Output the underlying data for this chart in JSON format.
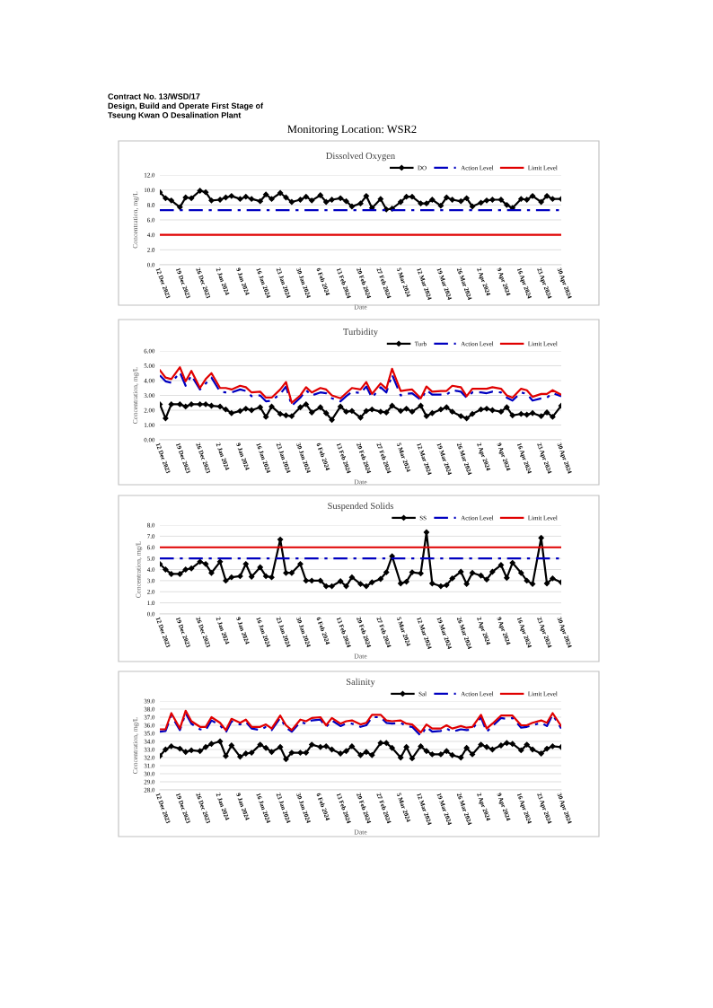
{
  "chart_data": [
    {
      "type": "line",
      "title": "Dissolved Oxygen",
      "xlabel": "Date",
      "ylabel": "Concentration, mg/L",
      "annotations": [
        "Contract No. 13/WSD/17\nDesign, Build and Operate First Stage of\nTseung Kwan O Desalination Plant",
        "Monitoring Location: WSR2"
      ],
      "x": [
        "2023-12-12",
        "2023-12-14",
        "2023-12-16",
        "2023-12-19",
        "2023-12-21",
        "2023-12-23",
        "2023-12-26",
        "2023-12-28",
        "2023-12-30",
        "2024-01-02",
        "2024-01-04",
        "2024-01-06",
        "2024-01-09",
        "2024-01-11",
        "2024-01-13",
        "2024-01-16",
        "2024-01-18",
        "2024-01-20",
        "2024-01-23",
        "2024-01-25",
        "2024-01-27",
        "2024-01-30",
        "2024-02-01",
        "2024-02-03",
        "2024-02-06",
        "2024-02-08",
        "2024-02-10",
        "2024-02-13",
        "2024-02-15",
        "2024-02-17",
        "2024-02-20",
        "2024-02-22",
        "2024-02-24",
        "2024-02-27",
        "2024-02-29",
        "2024-03-02",
        "2024-03-05",
        "2024-03-07",
        "2024-03-09",
        "2024-03-12",
        "2024-03-14",
        "2024-03-16",
        "2024-03-19",
        "2024-03-21",
        "2024-03-23",
        "2024-03-26",
        "2024-03-28",
        "2024-03-30",
        "2024-04-02",
        "2024-04-04",
        "2024-04-06",
        "2024-04-09",
        "2024-04-11",
        "2024-04-13",
        "2024-04-16",
        "2024-04-18",
        "2024-04-20",
        "2024-04-23",
        "2024-04-25",
        "2024-04-27",
        "2024-04-30"
      ],
      "series": [
        {
          "name": "DO",
          "color": "#000000",
          "marker": "diamond",
          "line_style": "solid",
          "values": [
            9.7,
            8.9,
            8.6,
            7.7,
            9.0,
            8.9,
            9.9,
            9.7,
            8.6,
            8.7,
            9.0,
            9.2,
            8.8,
            9.1,
            8.8,
            8.5,
            9.4,
            8.8,
            9.6,
            9.0,
            8.4,
            8.7,
            9.1,
            8.6,
            9.3,
            8.4,
            8.7,
            8.9,
            8.5,
            7.8,
            8.2,
            9.2,
            7.6,
            8.8,
            7.4,
            7.5,
            8.4,
            9.1,
            9.1,
            8.2,
            8.2,
            8.7,
            7.9,
            9.0,
            8.7,
            8.5,
            8.9,
            7.8,
            8.3,
            8.6,
            8.7,
            8.7,
            8.0,
            7.6,
            8.8,
            8.7,
            9.2,
            8.4,
            9.2,
            8.8,
            8.8
          ]
        },
        {
          "name": "Action Level",
          "color": "#0000c0",
          "marker": "none",
          "line_style": "dashed",
          "values": [
            7.3,
            7.3,
            7.3,
            7.3,
            7.3,
            7.3,
            7.3,
            7.3,
            7.3,
            7.3,
            7.3,
            7.3,
            7.3,
            7.3,
            7.3,
            7.3,
            7.3,
            7.3,
            7.3,
            7.3,
            7.3,
            7.3,
            7.3,
            7.3,
            7.3,
            7.3,
            7.3,
            7.3,
            7.3,
            7.3,
            7.3,
            7.3,
            7.3,
            7.3,
            7.3,
            7.3,
            7.3,
            7.3,
            7.3,
            7.3,
            7.3,
            7.3,
            7.3,
            7.3,
            7.3,
            7.3,
            7.3,
            7.3,
            7.3,
            7.3,
            7.3,
            7.3,
            7.3,
            7.3,
            7.3,
            7.3,
            7.3,
            7.3,
            7.3,
            7.3,
            7.3
          ]
        },
        {
          "name": "Limit Level",
          "color": "#e00000",
          "marker": "none",
          "line_style": "solid",
          "values": [
            4.0,
            4.0,
            4.0,
            4.0,
            4.0,
            4.0,
            4.0,
            4.0,
            4.0,
            4.0,
            4.0,
            4.0,
            4.0,
            4.0,
            4.0,
            4.0,
            4.0,
            4.0,
            4.0,
            4.0,
            4.0,
            4.0,
            4.0,
            4.0,
            4.0,
            4.0,
            4.0,
            4.0,
            4.0,
            4.0,
            4.0,
            4.0,
            4.0,
            4.0,
            4.0,
            4.0,
            4.0,
            4.0,
            4.0,
            4.0,
            4.0,
            4.0,
            4.0,
            4.0,
            4.0,
            4.0,
            4.0,
            4.0,
            4.0,
            4.0,
            4.0,
            4.0,
            4.0,
            4.0,
            4.0,
            4.0,
            4.0,
            4.0,
            4.0,
            4.0,
            4.0
          ]
        }
      ],
      "xlim": [
        "2023-12-12",
        "2024-04-30"
      ],
      "xticks": [
        {
          "value": "2023-12-12",
          "label": "12 Dec 2023"
        },
        {
          "value": "2023-12-19",
          "label": "19 Dec 2023"
        },
        {
          "value": "2023-12-26",
          "label": "26 Dec 2023"
        },
        {
          "value": "2024-01-02",
          "label": "2 Jan 2024"
        },
        {
          "value": "2024-01-09",
          "label": "9 Jan 2024"
        },
        {
          "value": "2024-01-16",
          "label": "16 Jan 2024"
        },
        {
          "value": "2024-01-23",
          "label": "23 Jan 2024"
        },
        {
          "value": "2024-01-30",
          "label": "30 Jan 2024"
        },
        {
          "value": "2024-02-06",
          "label": "6 Feb 2024"
        },
        {
          "value": "2024-02-13",
          "label": "13 Feb 2024"
        },
        {
          "value": "2024-02-20",
          "label": "20 Feb 2024"
        },
        {
          "value": "2024-02-27",
          "label": "27 Feb 2024"
        },
        {
          "value": "2024-03-05",
          "label": "5 Mar 2024"
        },
        {
          "value": "2024-03-12",
          "label": "12 Mar 2024"
        },
        {
          "value": "2024-03-19",
          "label": "19 Mar 2024"
        },
        {
          "value": "2024-03-26",
          "label": "26 Mar 2024"
        },
        {
          "value": "2024-04-02",
          "label": "2 Apr 2024"
        },
        {
          "value": "2024-04-09",
          "label": "9 Apr 2024"
        },
        {
          "value": "2024-04-16",
          "label": "16 Apr 2024"
        },
        {
          "value": "2024-04-23",
          "label": "23 Apr 2024"
        },
        {
          "value": "2024-04-30",
          "label": "30 Apr 2024"
        }
      ],
      "ylim": [
        0,
        12
      ],
      "yticks": [
        {
          "value": 0,
          "label": "0.0"
        },
        {
          "value": 2,
          "label": "2.0"
        },
        {
          "value": 4,
          "label": "4.0"
        },
        {
          "value": 6,
          "label": "6.0"
        },
        {
          "value": 8,
          "label": "8.0"
        },
        {
          "value": 10,
          "label": "10.0"
        },
        {
          "value": 12,
          "label": "12.0"
        }
      ],
      "grid": "y",
      "legend": "top right"
    },
    {
      "type": "line",
      "title": "Turbidity",
      "xlabel": "Date",
      "ylabel": "Concentration, mg/L",
      "x": [
        "2023-12-12",
        "2023-12-14",
        "2023-12-16",
        "2023-12-19",
        "2023-12-21",
        "2023-12-23",
        "2023-12-26",
        "2023-12-28",
        "2023-12-30",
        "2024-01-02",
        "2024-01-04",
        "2024-01-06",
        "2024-01-09",
        "2024-01-11",
        "2024-01-13",
        "2024-01-16",
        "2024-01-18",
        "2024-01-20",
        "2024-01-23",
        "2024-01-25",
        "2024-01-27",
        "2024-01-30",
        "2024-02-01",
        "2024-02-03",
        "2024-02-06",
        "2024-02-08",
        "2024-02-10",
        "2024-02-13",
        "2024-02-15",
        "2024-02-17",
        "2024-02-20",
        "2024-02-22",
        "2024-02-24",
        "2024-02-27",
        "2024-02-29",
        "2024-03-02",
        "2024-03-05",
        "2024-03-07",
        "2024-03-09",
        "2024-03-12",
        "2024-03-14",
        "2024-03-16",
        "2024-03-19",
        "2024-03-21",
        "2024-03-23",
        "2024-03-26",
        "2024-03-28",
        "2024-03-30",
        "2024-04-02",
        "2024-04-04",
        "2024-04-06",
        "2024-04-09",
        "2024-04-11",
        "2024-04-13",
        "2024-04-16",
        "2024-04-18",
        "2024-04-20",
        "2024-04-23",
        "2024-04-25",
        "2024-04-27",
        "2024-04-30"
      ],
      "series": [
        {
          "name": "Turb",
          "color": "#000000",
          "marker": "diamond",
          "line_style": "solid",
          "values": [
            2.4,
            1.45,
            2.4,
            2.4,
            2.25,
            2.4,
            2.4,
            2.4,
            2.3,
            2.25,
            2.05,
            1.8,
            1.95,
            2.1,
            2.0,
            2.2,
            1.55,
            2.25,
            1.75,
            1.65,
            1.6,
            2.2,
            2.4,
            1.85,
            2.2,
            1.8,
            1.35,
            2.25,
            1.9,
            1.95,
            1.5,
            1.95,
            2.05,
            1.9,
            1.85,
            2.3,
            1.95,
            2.1,
            1.9,
            2.3,
            1.6,
            1.8,
            2.05,
            2.2,
            1.9,
            1.6,
            1.45,
            1.75,
            2.05,
            2.1,
            2.0,
            1.9,
            2.2,
            1.65,
            1.75,
            1.7,
            1.8,
            1.6,
            1.85,
            1.55,
            2.3
          ]
        },
        {
          "name": "Action Level",
          "color": "#0000c0",
          "marker": "none",
          "line_style": "dashed",
          "values": [
            4.35,
            3.95,
            3.85,
            4.55,
            3.65,
            4.35,
            3.4,
            3.8,
            4.2,
            3.25,
            3.2,
            3.2,
            3.4,
            3.3,
            2.95,
            3.0,
            2.6,
            2.65,
            3.1,
            3.6,
            2.3,
            2.85,
            3.35,
            3.0,
            3.2,
            3.15,
            2.8,
            2.6,
            2.95,
            3.25,
            3.15,
            3.6,
            2.85,
            3.55,
            3.2,
            4.4,
            3.0,
            3.1,
            3.15,
            2.7,
            3.35,
            3.05,
            3.05,
            3.05,
            3.35,
            3.25,
            2.85,
            3.2,
            3.2,
            3.15,
            3.25,
            3.2,
            2.85,
            2.65,
            3.2,
            3.1,
            2.65,
            2.8,
            2.85,
            3.15,
            2.95
          ]
        },
        {
          "name": "Limit Level",
          "color": "#e00000",
          "marker": "none",
          "line_style": "solid",
          "values": [
            4.7,
            4.2,
            4.1,
            4.9,
            3.95,
            4.65,
            3.5,
            4.1,
            4.5,
            3.5,
            3.5,
            3.4,
            3.65,
            3.55,
            3.2,
            3.25,
            2.85,
            2.85,
            3.4,
            3.9,
            2.5,
            3.0,
            3.55,
            3.2,
            3.5,
            3.4,
            3.0,
            2.8,
            3.15,
            3.5,
            3.4,
            3.9,
            3.1,
            3.8,
            3.45,
            4.8,
            3.3,
            3.35,
            3.4,
            2.8,
            3.6,
            3.25,
            3.3,
            3.3,
            3.65,
            3.55,
            2.95,
            3.45,
            3.45,
            3.45,
            3.55,
            3.45,
            3.0,
            2.85,
            3.45,
            3.35,
            2.9,
            3.1,
            3.1,
            3.35,
            3.05
          ]
        }
      ],
      "xlim": [
        "2023-12-12",
        "2024-04-30"
      ],
      "xticks": [
        {
          "value": "2023-12-12",
          "label": "12 Dec 2023"
        },
        {
          "value": "2023-12-19",
          "label": "19 Dec 2023"
        },
        {
          "value": "2023-12-26",
          "label": "26 Dec 2023"
        },
        {
          "value": "2024-01-02",
          "label": "2 Jan 2024"
        },
        {
          "value": "2024-01-09",
          "label": "9 Jan 2024"
        },
        {
          "value": "2024-01-16",
          "label": "16 Jan 2024"
        },
        {
          "value": "2024-01-23",
          "label": "23 Jan 2024"
        },
        {
          "value": "2024-01-30",
          "label": "30 Jan 2024"
        },
        {
          "value": "2024-02-06",
          "label": "6 Feb 2024"
        },
        {
          "value": "2024-02-13",
          "label": "13 Feb 2024"
        },
        {
          "value": "2024-02-20",
          "label": "20 Feb 2024"
        },
        {
          "value": "2024-02-27",
          "label": "27 Feb 2024"
        },
        {
          "value": "2024-03-05",
          "label": "5 Mar 2024"
        },
        {
          "value": "2024-03-12",
          "label": "12 Mar 2024"
        },
        {
          "value": "2024-03-19",
          "label": "19 Mar 2024"
        },
        {
          "value": "2024-03-26",
          "label": "26 Mar 2024"
        },
        {
          "value": "2024-04-02",
          "label": "2 Apr 2024"
        },
        {
          "value": "2024-04-09",
          "label": "9 Apr 2024"
        },
        {
          "value": "2024-04-16",
          "label": "16 Apr 2024"
        },
        {
          "value": "2024-04-23",
          "label": "23 Apr 2024"
        },
        {
          "value": "2024-04-30",
          "label": "30 Apr 2024"
        }
      ],
      "ylim": [
        0,
        6
      ],
      "yticks": [
        {
          "value": 0,
          "label": "0.00"
        },
        {
          "value": 1,
          "label": "1.00"
        },
        {
          "value": 2,
          "label": "2.00"
        },
        {
          "value": 3,
          "label": "3.00"
        },
        {
          "value": 4,
          "label": "4.00"
        },
        {
          "value": 5,
          "label": "5.00"
        },
        {
          "value": 6,
          "label": "6.00"
        }
      ],
      "grid": "y",
      "legend": "top right"
    },
    {
      "type": "line",
      "title": "Suspended Solids",
      "xlabel": "Date",
      "ylabel": "Concentration, mg/L",
      "x": [
        "2023-12-12",
        "2023-12-14",
        "2023-12-16",
        "2023-12-19",
        "2023-12-21",
        "2023-12-23",
        "2023-12-26",
        "2023-12-28",
        "2023-12-30",
        "2024-01-02",
        "2024-01-04",
        "2024-01-06",
        "2024-01-09",
        "2024-01-11",
        "2024-01-13",
        "2024-01-16",
        "2024-01-18",
        "2024-01-20",
        "2024-01-23",
        "2024-01-25",
        "2024-01-27",
        "2024-01-30",
        "2024-02-01",
        "2024-02-03",
        "2024-02-06",
        "2024-02-08",
        "2024-02-10",
        "2024-02-13",
        "2024-02-15",
        "2024-02-17",
        "2024-02-20",
        "2024-02-22",
        "2024-02-24",
        "2024-02-27",
        "2024-02-29",
        "2024-03-02",
        "2024-03-05",
        "2024-03-07",
        "2024-03-09",
        "2024-03-12",
        "2024-03-14",
        "2024-03-16",
        "2024-03-19",
        "2024-03-21",
        "2024-03-23",
        "2024-03-26",
        "2024-03-28",
        "2024-03-30",
        "2024-04-02",
        "2024-04-04",
        "2024-04-06",
        "2024-04-09",
        "2024-04-11",
        "2024-04-13",
        "2024-04-16",
        "2024-04-18",
        "2024-04-20",
        "2024-04-23",
        "2024-04-25",
        "2024-04-27",
        "2024-04-30"
      ],
      "series": [
        {
          "name": "SS",
          "color": "#000000",
          "marker": "diamond",
          "line_style": "solid",
          "values": [
            4.5,
            4.0,
            3.6,
            3.6,
            4.0,
            4.1,
            4.7,
            4.5,
            3.7,
            4.7,
            3.0,
            3.3,
            3.4,
            4.5,
            3.35,
            4.2,
            3.4,
            3.3,
            6.7,
            3.7,
            3.7,
            4.5,
            3.0,
            3.0,
            3.0,
            2.5,
            2.5,
            2.95,
            2.5,
            3.3,
            2.7,
            2.5,
            2.85,
            3.15,
            3.75,
            5.2,
            2.75,
            2.9,
            3.75,
            3.65,
            7.35,
            2.75,
            2.5,
            2.6,
            3.2,
            3.8,
            2.7,
            3.7,
            3.45,
            3.1,
            3.8,
            4.4,
            3.25,
            4.6,
            3.7,
            3.0,
            2.7,
            6.85,
            2.75,
            3.2,
            2.85
          ]
        },
        {
          "name": "Action Level",
          "color": "#0000c0",
          "marker": "none",
          "line_style": "dashed",
          "values": [
            5.0,
            5.0,
            5.0,
            5.0,
            5.0,
            5.0,
            5.0,
            5.0,
            5.0,
            5.0,
            5.0,
            5.0,
            5.0,
            5.0,
            5.0,
            5.0,
            5.0,
            5.0,
            5.0,
            5.0,
            5.0,
            5.0,
            5.0,
            5.0,
            5.0,
            5.0,
            5.0,
            5.0,
            5.0,
            5.0,
            5.0,
            5.0,
            5.0,
            5.0,
            5.0,
            5.0,
            5.0,
            5.0,
            5.0,
            5.0,
            5.0,
            5.0,
            5.0,
            5.0,
            5.0,
            5.0,
            5.0,
            5.0,
            5.0,
            5.0,
            5.0,
            5.0,
            5.0,
            5.0,
            5.0,
            5.0,
            5.0,
            5.0,
            5.0,
            5.0,
            5.0
          ]
        },
        {
          "name": "Limit Level",
          "color": "#e00000",
          "marker": "none",
          "line_style": "solid",
          "values": [
            6.0,
            6.0,
            6.0,
            6.0,
            6.0,
            6.0,
            6.0,
            6.0,
            6.0,
            6.0,
            6.0,
            6.0,
            6.0,
            6.0,
            6.0,
            6.0,
            6.0,
            6.0,
            6.0,
            6.0,
            6.0,
            6.0,
            6.0,
            6.0,
            6.0,
            6.0,
            6.0,
            6.0,
            6.0,
            6.0,
            6.0,
            6.0,
            6.0,
            6.0,
            6.0,
            6.0,
            6.0,
            6.0,
            6.0,
            6.0,
            6.0,
            6.0,
            6.0,
            6.0,
            6.0,
            6.0,
            6.0,
            6.0,
            6.0,
            6.0,
            6.0,
            6.0,
            6.0,
            6.0,
            6.0,
            6.0,
            6.0,
            6.0,
            6.0,
            6.0,
            6.0
          ]
        }
      ],
      "xlim": [
        "2023-12-12",
        "2024-04-30"
      ],
      "xticks": [
        {
          "value": "2023-12-12",
          "label": "12 Dec 2023"
        },
        {
          "value": "2023-12-19",
          "label": "19 Dec 2023"
        },
        {
          "value": "2023-12-26",
          "label": "26 Dec 2023"
        },
        {
          "value": "2024-01-02",
          "label": "2 Jan 2024"
        },
        {
          "value": "2024-01-09",
          "label": "9 Jan 2024"
        },
        {
          "value": "2024-01-16",
          "label": "16 Jan 2024"
        },
        {
          "value": "2024-01-23",
          "label": "23 Jan 2024"
        },
        {
          "value": "2024-01-30",
          "label": "30 Jan 2024"
        },
        {
          "value": "2024-02-06",
          "label": "6 Feb 2024"
        },
        {
          "value": "2024-02-13",
          "label": "13 Feb 2024"
        },
        {
          "value": "2024-02-20",
          "label": "20 Feb 2024"
        },
        {
          "value": "2024-02-27",
          "label": "27 Feb 2024"
        },
        {
          "value": "2024-03-05",
          "label": "5 Mar 2024"
        },
        {
          "value": "2024-03-12",
          "label": "12 Mar 2024"
        },
        {
          "value": "2024-03-19",
          "label": "19 Mar 2024"
        },
        {
          "value": "2024-03-26",
          "label": "26 Mar 2024"
        },
        {
          "value": "2024-04-02",
          "label": "2 Apr 2024"
        },
        {
          "value": "2024-04-09",
          "label": "9 Apr 2024"
        },
        {
          "value": "2024-04-16",
          "label": "16 Apr 2024"
        },
        {
          "value": "2024-04-23",
          "label": "23 Apr 2024"
        },
        {
          "value": "2024-04-30",
          "label": "30 Apr 2024"
        }
      ],
      "ylim": [
        0,
        8
      ],
      "yticks": [
        {
          "value": 0,
          "label": "0.0"
        },
        {
          "value": 1,
          "label": "1.0"
        },
        {
          "value": 2,
          "label": "2.0"
        },
        {
          "value": 3,
          "label": "3.0"
        },
        {
          "value": 4,
          "label": "4.0"
        },
        {
          "value": 5,
          "label": "5.0"
        },
        {
          "value": 6,
          "label": "6.0"
        },
        {
          "value": 7,
          "label": "7.0"
        },
        {
          "value": 8,
          "label": "8.0"
        }
      ],
      "grid": "y",
      "legend": "top right"
    },
    {
      "type": "line",
      "title": "Salinity",
      "xlabel": "Date",
      "ylabel": "Concentration, mg/L",
      "x": [
        "2023-12-12",
        "2023-12-14",
        "2023-12-16",
        "2023-12-19",
        "2023-12-21",
        "2023-12-23",
        "2023-12-26",
        "2023-12-28",
        "2023-12-30",
        "2024-01-02",
        "2024-01-04",
        "2024-01-06",
        "2024-01-09",
        "2024-01-11",
        "2024-01-13",
        "2024-01-16",
        "2024-01-18",
        "2024-01-20",
        "2024-01-23",
        "2024-01-25",
        "2024-01-27",
        "2024-01-30",
        "2024-02-01",
        "2024-02-03",
        "2024-02-06",
        "2024-02-08",
        "2024-02-10",
        "2024-02-13",
        "2024-02-15",
        "2024-02-17",
        "2024-02-20",
        "2024-02-22",
        "2024-02-24",
        "2024-02-27",
        "2024-02-29",
        "2024-03-02",
        "2024-03-05",
        "2024-03-07",
        "2024-03-09",
        "2024-03-12",
        "2024-03-14",
        "2024-03-16",
        "2024-03-19",
        "2024-03-21",
        "2024-03-23",
        "2024-03-26",
        "2024-03-28",
        "2024-03-30",
        "2024-04-02",
        "2024-04-04",
        "2024-04-06",
        "2024-04-09",
        "2024-04-11",
        "2024-04-13",
        "2024-04-16",
        "2024-04-18",
        "2024-04-20",
        "2024-04-23",
        "2024-04-25",
        "2024-04-27",
        "2024-04-30"
      ],
      "series": [
        {
          "name": "Sal",
          "color": "#000000",
          "marker": "diamond",
          "line_style": "solid",
          "values": [
            32.2,
            33.0,
            33.4,
            33.1,
            32.7,
            32.9,
            32.8,
            33.3,
            33.7,
            34.0,
            32.2,
            33.5,
            32.1,
            32.5,
            32.6,
            33.6,
            33.2,
            32.7,
            33.3,
            31.8,
            32.6,
            32.6,
            32.6,
            33.6,
            33.3,
            33.4,
            33.0,
            32.5,
            32.8,
            33.4,
            32.3,
            32.7,
            32.3,
            33.8,
            33.8,
            33.2,
            32.0,
            33.3,
            31.9,
            33.4,
            32.8,
            32.4,
            32.4,
            32.8,
            32.3,
            32.0,
            33.2,
            32.4,
            33.6,
            33.3,
            33.0,
            33.5,
            33.8,
            33.7,
            32.9,
            33.6,
            33.0,
            32.5,
            33.1,
            33.4,
            33.3
          ]
        },
        {
          "name": "Action Level",
          "color": "#0000c0",
          "marker": "none",
          "line_style": "dashed",
          "values": [
            35.2,
            35.3,
            37.2,
            35.4,
            37.5,
            36.2,
            35.5,
            35.4,
            36.6,
            36.0,
            35.1,
            36.5,
            36.1,
            36.4,
            35.6,
            35.4,
            35.8,
            35.4,
            36.9,
            35.7,
            35.2,
            36.4,
            36.2,
            36.6,
            36.7,
            35.8,
            36.6,
            35.9,
            36.2,
            36.2,
            35.8,
            36.0,
            37.0,
            37.0,
            36.3,
            36.2,
            36.3,
            35.9,
            35.8,
            34.7,
            35.8,
            35.2,
            35.3,
            35.6,
            35.2,
            35.5,
            35.4,
            35.5,
            37.0,
            35.2,
            35.9,
            36.9,
            36.8,
            36.9,
            35.7,
            35.8,
            36.0,
            36.3,
            35.9,
            37.3,
            35.6
          ]
        },
        {
          "name": "Limit Level",
          "color": "#e00000",
          "marker": "none",
          "line_style": "solid",
          "values": [
            35.5,
            35.5,
            37.5,
            35.6,
            37.8,
            36.5,
            35.8,
            35.8,
            37.0,
            36.3,
            35.4,
            36.8,
            36.3,
            36.7,
            35.8,
            35.8,
            36.1,
            35.6,
            37.2,
            36.0,
            35.4,
            36.7,
            36.5,
            36.9,
            37.0,
            36.0,
            36.9,
            36.2,
            36.5,
            36.6,
            36.1,
            36.3,
            37.3,
            37.3,
            36.6,
            36.5,
            36.6,
            36.2,
            36.1,
            35.1,
            36.1,
            35.6,
            35.6,
            36.0,
            35.6,
            35.9,
            35.7,
            35.8,
            37.3,
            35.6,
            36.2,
            37.2,
            37.2,
            37.2,
            36.0,
            36.0,
            36.3,
            36.6,
            36.3,
            37.5,
            35.9
          ]
        }
      ],
      "xlim": [
        "2023-12-12",
        "2024-04-30"
      ],
      "xticks": [
        {
          "value": "2023-12-12",
          "label": "12 Dec 2023"
        },
        {
          "value": "2023-12-19",
          "label": "19 Dec 2023"
        },
        {
          "value": "2023-12-26",
          "label": "26 Dec 2023"
        },
        {
          "value": "2024-01-02",
          "label": "2 Jan 2024"
        },
        {
          "value": "2024-01-09",
          "label": "9 Jan 2024"
        },
        {
          "value": "2024-01-16",
          "label": "16 Jan 2024"
        },
        {
          "value": "2024-01-23",
          "label": "23 Jan 2024"
        },
        {
          "value": "2024-01-30",
          "label": "30 Jan 2024"
        },
        {
          "value": "2024-02-06",
          "label": "6 Feb 2024"
        },
        {
          "value": "2024-02-13",
          "label": "13 Feb 2024"
        },
        {
          "value": "2024-02-20",
          "label": "20 Feb 2024"
        },
        {
          "value": "2024-02-27",
          "label": "27 Feb 2024"
        },
        {
          "value": "2024-03-05",
          "label": "5 Mar 2024"
        },
        {
          "value": "2024-03-12",
          "label": "12 Mar 2024"
        },
        {
          "value": "2024-03-19",
          "label": "19 Mar 2024"
        },
        {
          "value": "2024-03-26",
          "label": "26 Mar 2024"
        },
        {
          "value": "2024-04-02",
          "label": "2 Apr 2024"
        },
        {
          "value": "2024-04-09",
          "label": "9 Apr 2024"
        },
        {
          "value": "2024-04-16",
          "label": "16 Apr 2024"
        },
        {
          "value": "2024-04-23",
          "label": "23 Apr 2024"
        },
        {
          "value": "2024-04-30",
          "label": "30 Apr 2024"
        }
      ],
      "ylim": [
        28,
        39
      ],
      "yticks": [
        {
          "value": 28,
          "label": "28.0"
        },
        {
          "value": 29,
          "label": "29.0"
        },
        {
          "value": 30,
          "label": "30.0"
        },
        {
          "value": 31,
          "label": "31.0"
        },
        {
          "value": 32,
          "label": "32.0"
        },
        {
          "value": 33,
          "label": "33.0"
        },
        {
          "value": 34,
          "label": "34.0"
        },
        {
          "value": 35,
          "label": "35.0"
        },
        {
          "value": 36,
          "label": "36.0"
        },
        {
          "value": 37,
          "label": "37.0"
        },
        {
          "value": 38,
          "label": "38.0"
        },
        {
          "value": 39,
          "label": "39.0"
        }
      ],
      "grid": "y",
      "legend": "top right"
    }
  ]
}
